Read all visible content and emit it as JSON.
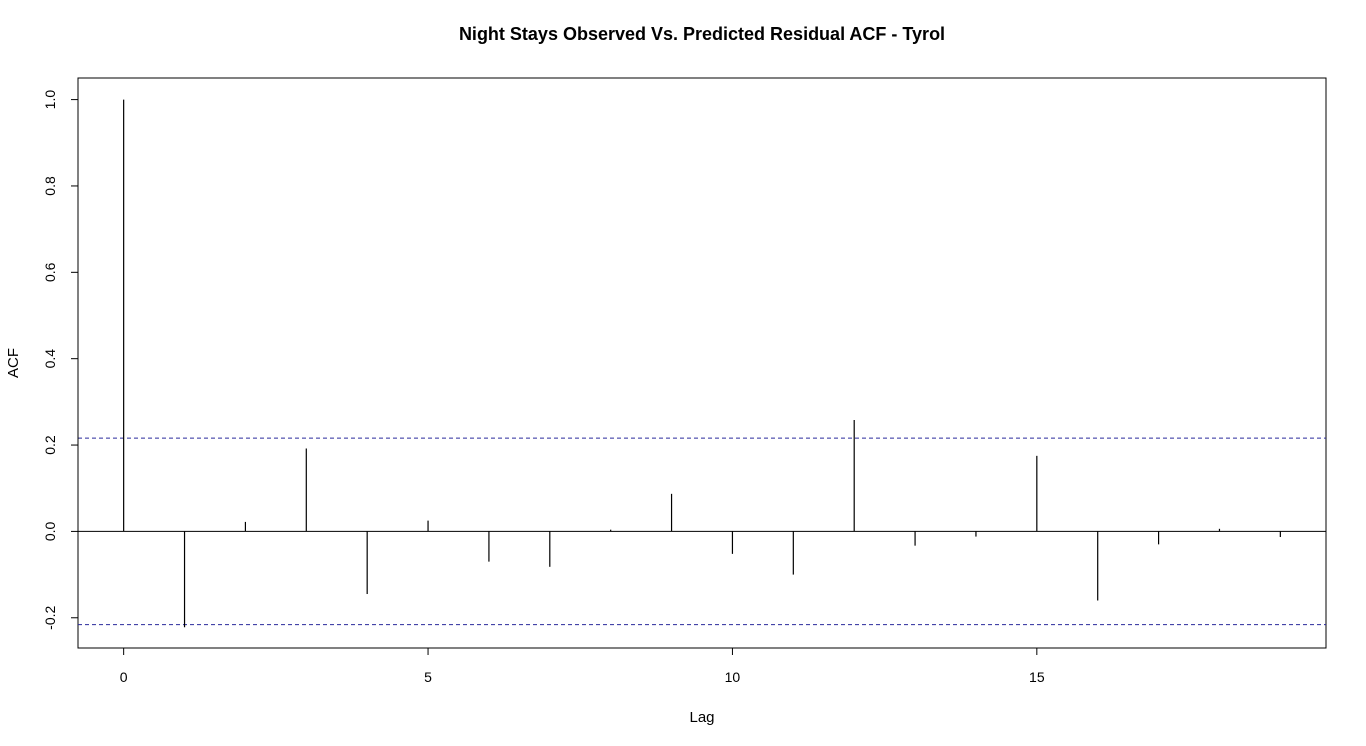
{
  "chart_data": {
    "type": "bar",
    "title": "Night Stays Observed Vs. Predicted Residual ACF - Tyrol",
    "xlabel": "Lag",
    "ylabel": "ACF",
    "x": [
      0,
      1,
      2,
      3,
      4,
      5,
      6,
      7,
      8,
      9,
      10,
      11,
      12,
      13,
      14,
      15,
      16,
      17,
      18,
      19
    ],
    "values": [
      1.0,
      -0.222,
      0.022,
      0.192,
      -0.145,
      0.025,
      -0.07,
      -0.082,
      0.004,
      0.087,
      -0.052,
      -0.1,
      0.258,
      -0.033,
      -0.012,
      0.175,
      -0.16,
      -0.03,
      0.006,
      -0.013
    ],
    "xlim": [
      -0.75,
      19.75
    ],
    "ylim": [
      -0.27,
      1.05
    ],
    "x_ticks": [
      0,
      5,
      10,
      15
    ],
    "y_ticks": [
      -0.2,
      0.0,
      0.2,
      0.4,
      0.6,
      0.8,
      1.0
    ],
    "x_tick_labels": [
      "0",
      "5",
      "10",
      "15"
    ],
    "y_tick_labels": [
      "-0.2",
      "0.0",
      "0.2",
      "0.4",
      "0.6",
      "0.8",
      "1.0"
    ],
    "confidence_bounds": [
      0.216,
      -0.216
    ],
    "bound_color": "#2a2a9c",
    "spike_color": "#000000",
    "grid": false,
    "legend": "none"
  }
}
